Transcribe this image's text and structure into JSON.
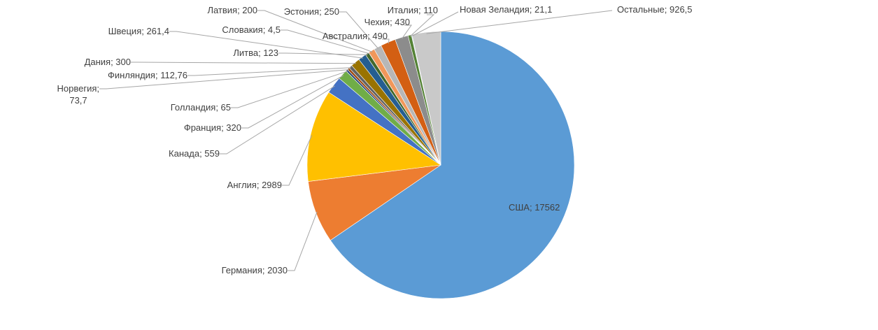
{
  "chart_data": {
    "type": "pie",
    "start_angle_deg": 0,
    "direction": "clockwise",
    "legend": "none",
    "data_labels": "outside-with-leaders",
    "slices": [
      {
        "name": "США",
        "value": 17562,
        "label": "США; 17562",
        "color": "#5b9bd5"
      },
      {
        "name": "Германия",
        "value": 2030,
        "label": "Германия; 2030",
        "color": "#ed7d31"
      },
      {
        "name": "Англия",
        "value": 2989,
        "label": "Англия; 2989",
        "color": "#ffc000"
      },
      {
        "name": "Канада",
        "value": 559,
        "label": "Канада; 559",
        "color": "#4472c4"
      },
      {
        "name": "Франция",
        "value": 320,
        "label": "Франция; 320",
        "color": "#70ad47"
      },
      {
        "name": "Голландия",
        "value": 65,
        "label": "Голландия; 65",
        "color": "#264478"
      },
      {
        "name": "Норвегия",
        "value": 73.7,
        "label": "Норвегия;",
        "label2": "73,7",
        "color": "#9e480e"
      },
      {
        "name": "Финляндия",
        "value": 112.76,
        "label": "Финляндия; 112,76",
        "color": "#636363"
      },
      {
        "name": "Дания",
        "value": 300,
        "label": "Дания; 300",
        "color": "#997300"
      },
      {
        "name": "Швеция",
        "value": 261.4,
        "label": "Швеция; 261,4",
        "color": "#255e91"
      },
      {
        "name": "Литва",
        "value": 123,
        "label": "Литва; 123",
        "color": "#43682b"
      },
      {
        "name": "Словакия",
        "value": 4.5,
        "label": "Словакия; 4,5",
        "color": "#698ed0"
      },
      {
        "name": "Латвия",
        "value": 200,
        "label": "Латвия; 200",
        "color": "#f1975a"
      },
      {
        "name": "Эстония",
        "value": 250,
        "label": "Эстония; 250",
        "color": "#b7b7b7"
      },
      {
        "name": "Австралия",
        "value": 490,
        "label": "Австралия; 490",
        "color": "#d35f13"
      },
      {
        "name": "Чехия",
        "value": 430,
        "label": "Чехия; 430",
        "color": "#8c8c8c"
      },
      {
        "name": "Италия",
        "value": 110,
        "label": "Италия; 110",
        "color": "#548235"
      },
      {
        "name": "Новая Зеландия",
        "value": 21.1,
        "label": "Новая Зеландия; 21,1",
        "color": "#9dc3e6"
      },
      {
        "name": "Остальные",
        "value": 926.5,
        "label": "Остальные; 926,5",
        "color": "#c9c9c9"
      }
    ]
  }
}
